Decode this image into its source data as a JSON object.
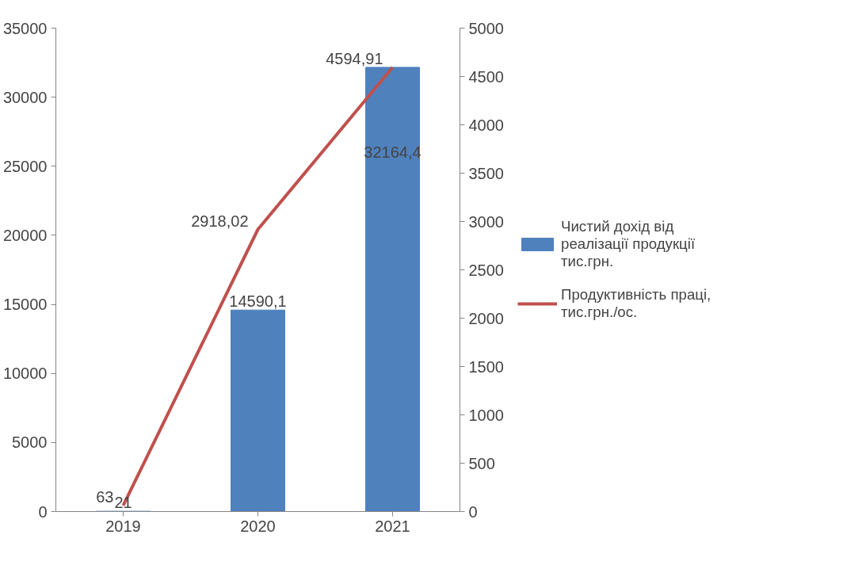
{
  "chart_data": {
    "type": "bar",
    "categories": [
      "2019",
      "2020",
      "2021"
    ],
    "series": [
      {
        "name": "Чистий дохід від реалізації продукції тис.грн.",
        "color": "#4f81bd",
        "values": [
          21,
          14590.1,
          32164.4
        ],
        "value_labels": [
          "21",
          "14590,1",
          "32164,4"
        ]
      },
      {
        "name": "Продуктивність праці, тис.грн./ос.",
        "type": "line",
        "axis": "y2",
        "color": "#c0504d",
        "values": [
          63,
          2918.02,
          4594.91
        ],
        "value_labels": [
          "63",
          "2918,02",
          "4594,91"
        ]
      }
    ],
    "ylim": [
      0,
      35000
    ],
    "yticks": [
      0,
      5000,
      10000,
      15000,
      20000,
      25000,
      30000,
      35000
    ],
    "y2lim": [
      0,
      5000
    ],
    "y2ticks": [
      0,
      500,
      1000,
      1500,
      2000,
      2500,
      3000,
      3500,
      4000,
      4500,
      5000
    ],
    "grid": false,
    "legend": "right",
    "marker": "none",
    "line_style": "solid"
  }
}
